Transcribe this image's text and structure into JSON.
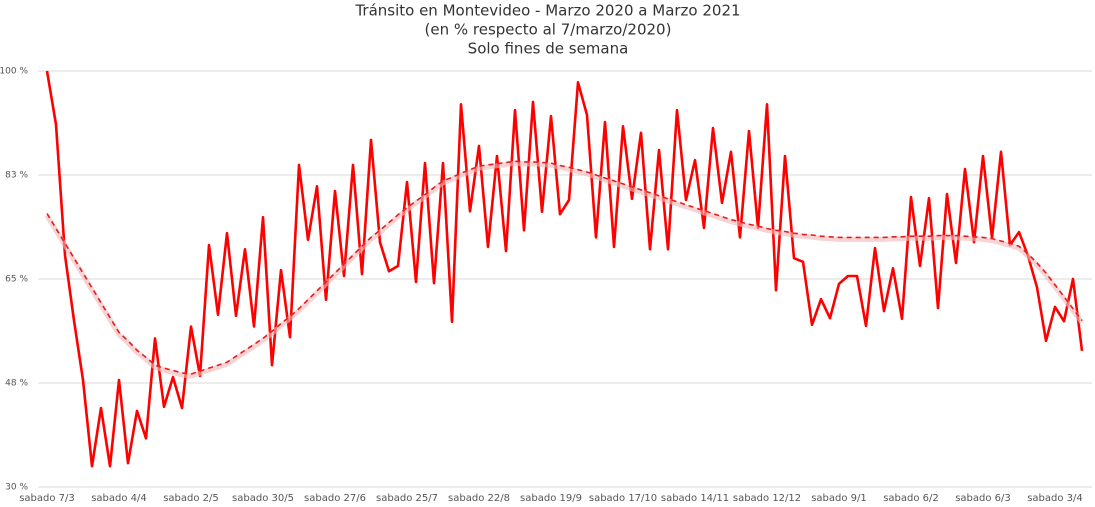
{
  "chart_data": {
    "type": "line",
    "title": "Tránsito en Montevideo - Marzo 2020 a Marzo 2021",
    "subtitle": [
      "(en % respecto al 7/marzo/2020)",
      "Solo fines de semana"
    ],
    "categories": [
      "sabado 7/3",
      null,
      null,
      null,
      null,
      null,
      null,
      null,
      "sabado 4/4",
      null,
      null,
      null,
      null,
      null,
      null,
      null,
      "sabado 2/5",
      null,
      null,
      null,
      null,
      null,
      null,
      null,
      "sabado 30/5",
      null,
      null,
      null,
      null,
      null,
      null,
      null,
      "sabado 27/6",
      null,
      null,
      null,
      null,
      null,
      null,
      null,
      "sabado 25/7",
      null,
      null,
      null,
      null,
      null,
      null,
      null,
      "sabado 22/8",
      null,
      null,
      null,
      null,
      null,
      null,
      null,
      "sabado 19/9",
      null,
      null,
      null,
      null,
      null,
      null,
      null,
      "sabado 17/10",
      null,
      null,
      null,
      null,
      null,
      null,
      null,
      "sabado 14/11",
      null,
      null,
      null,
      null,
      null,
      null,
      null,
      "sabado 12/12",
      null,
      null,
      null,
      null,
      null,
      null,
      null,
      "sabado 9/1",
      null,
      null,
      null,
      null,
      null,
      null,
      null,
      "sabado 6/2",
      null,
      null,
      null,
      null,
      null,
      null,
      null,
      "sabado 6/3",
      null,
      null,
      null,
      null,
      null,
      null,
      null,
      "sabado 3/4",
      null,
      null,
      null
    ],
    "series": [
      {
        "color": "#ff0000",
        "dashed": false,
        "values": [
          100,
          91,
          69,
          58,
          48,
          33.5,
          43.3,
          33.5,
          48,
          34,
          42.8,
          38.2,
          55,
          43.5,
          48.5,
          43.3,
          57,
          48.7,
          70.7,
          59,
          72.7,
          58.8,
          70,
          57,
          75.4,
          50.5,
          66.5,
          55.2,
          84.2,
          71.6,
          80.6,
          61.5,
          79.8,
          65.5,
          84.2,
          65.8,
          88.4,
          71.2,
          66.3,
          67.2,
          81.3,
          64.5,
          84.5,
          64.3,
          84.5,
          57.8,
          94.4,
          76.4,
          87.4,
          70.4,
          85.7,
          69.7,
          93.4,
          73.2,
          94.8,
          76.3,
          92.4,
          75.9,
          78.3,
          98.1,
          92.6,
          72,
          91.4,
          70.4,
          90.7,
          78.5,
          89.6,
          70,
          86.7,
          70,
          93.4,
          78.3,
          85,
          73.6,
          90.4,
          77.8,
          86.4,
          72,
          89.9,
          73.6,
          94.4,
          63.1,
          85.7,
          68.5,
          67.9,
          57.3,
          61.6,
          58.4,
          64.2,
          65.5,
          65.5,
          57.1,
          70.2,
          59.6,
          66.8,
          58.3,
          78.8,
          67.2,
          78.6,
          60.1,
          79.3,
          67.7,
          83.5,
          71.2,
          85.7,
          71.9,
          86.4,
          70.7,
          72.9,
          68.9,
          63.6,
          54.6,
          60.3,
          57.9,
          65,
          52.9
        ]
      },
      {
        "color": "#e02020",
        "dashed": true,
        "values": [
          76,
          73.5,
          71,
          68.5,
          66,
          63.5,
          61,
          58.5,
          56,
          54.6,
          53,
          51.8,
          50.5,
          50,
          49.6,
          49.2,
          49,
          49.5,
          50,
          50.5,
          51,
          52,
          53,
          54,
          55,
          56.2,
          57.5,
          58.7,
          60,
          61.5,
          63,
          64.5,
          66,
          67.5,
          69,
          70.5,
          72,
          73.2,
          74.5,
          75.8,
          77,
          78.1,
          79.2,
          80.4,
          81.5,
          82.1,
          82.8,
          83.4,
          84,
          84.2,
          84.4,
          84.6,
          84.8,
          84.7,
          84.7,
          84.6,
          84.5,
          84.1,
          83.8,
          83.4,
          83,
          82.5,
          82,
          81.5,
          81,
          80.5,
          80,
          79.5,
          79,
          78.5,
          78,
          77.5,
          77,
          76.5,
          76,
          75.5,
          75,
          74.6,
          74.2,
          73.9,
          73.5,
          73.2,
          73,
          72.7,
          72.5,
          72.4,
          72.2,
          72.1,
          72,
          72,
          72,
          72,
          72,
          72,
          72.1,
          72.1,
          72.2,
          72.2,
          72.2,
          72.3,
          72.3,
          72.3,
          72.2,
          72.1,
          72,
          71.8,
          71.4,
          71,
          70.5,
          69.2,
          67.7,
          66,
          64,
          62,
          60,
          58
        ]
      }
    ],
    "ylim": [
      30,
      100
    ],
    "yticks": [
      {
        "value": 30,
        "label": "30 %"
      },
      {
        "value": 47.5,
        "label": "48 %"
      },
      {
        "value": 65,
        "label": "65 %"
      },
      {
        "value": 82.5,
        "label": "83 %"
      },
      {
        "value": 100,
        "label": "100 %"
      }
    ],
    "grid": true
  }
}
